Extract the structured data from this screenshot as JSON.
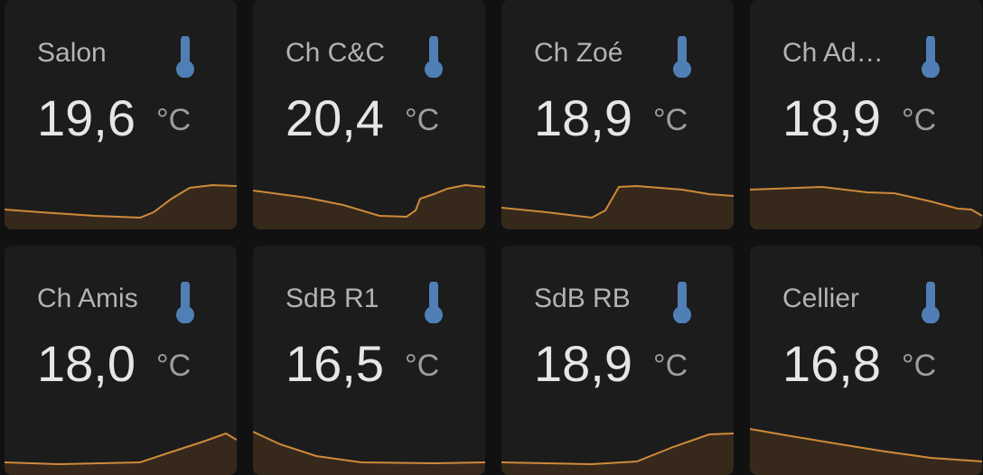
{
  "cards": [
    {
      "name": "Salon",
      "value": "19,6",
      "unit": "°C"
    },
    {
      "name": "Ch C&C",
      "value": "20,4",
      "unit": "°C"
    },
    {
      "name": "Ch Zoé",
      "value": "18,9",
      "unit": "°C"
    },
    {
      "name": "Ch Ad…",
      "value": "18,9",
      "unit": "°C"
    },
    {
      "name": "Ch Amis",
      "value": "18,0",
      "unit": "°C"
    },
    {
      "name": "SdB R1",
      "value": "16,5",
      "unit": "°C"
    },
    {
      "name": "SdB RB",
      "value": "18,9",
      "unit": "°C"
    },
    {
      "name": "Cellier",
      "value": "16,8",
      "unit": "°C"
    }
  ]
}
